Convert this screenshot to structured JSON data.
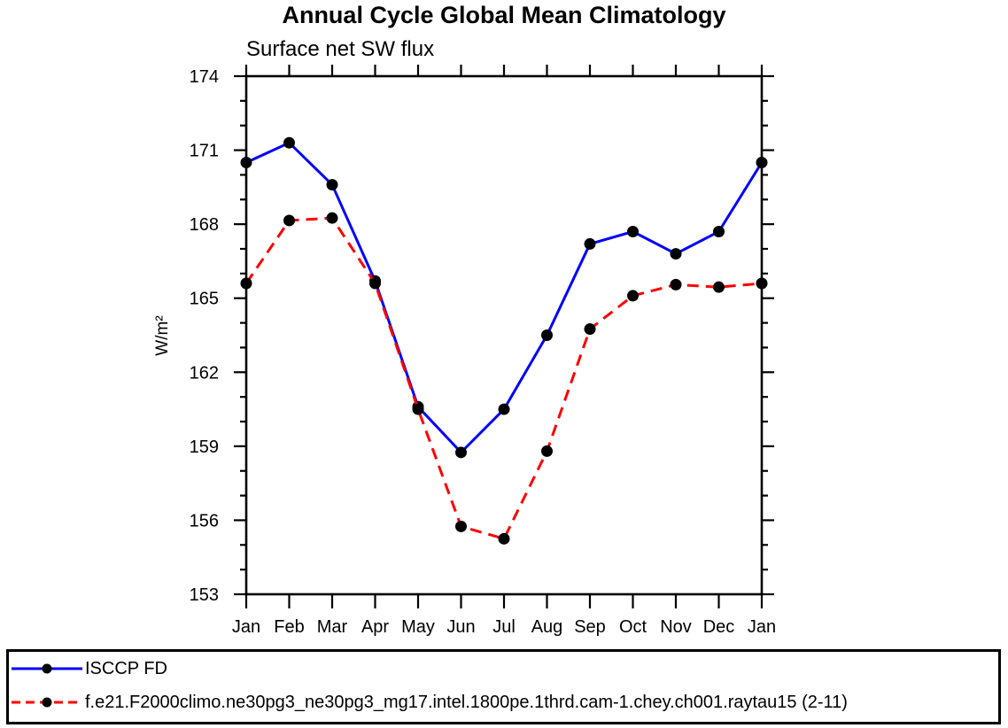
{
  "title": "Annual Cycle Global Mean Climatology",
  "subtitle": "Surface net SW flux",
  "chart_data": {
    "type": "line",
    "x_categories": [
      "Jan",
      "Feb",
      "Mar",
      "Apr",
      "May",
      "Jun",
      "Jul",
      "Aug",
      "Sep",
      "Oct",
      "Nov",
      "Dec",
      "Jan"
    ],
    "xlabel": "",
    "ylabel": "W/m²",
    "ylim": [
      153,
      174
    ],
    "ytick_major_step": 3,
    "ytick_minor_step": 1,
    "grid": false,
    "legend_position": "bottom-box",
    "axis_color": "#000000",
    "series": [
      {
        "name": "ISCCP FD",
        "color": "#0000ff",
        "line_style": "solid",
        "marker": "filled-circle",
        "marker_color": "#000000",
        "values": [
          170.5,
          171.3,
          169.6,
          165.7,
          160.6,
          158.75,
          160.5,
          163.5,
          167.2,
          167.7,
          166.8,
          167.7,
          170.5
        ]
      },
      {
        "name": "f.e21.F2000climo.ne30pg3_ne30pg3_mg17.intel.1800pe.1thrd.cam-1.chey.ch001.raytau15 (2-11)",
        "color": "#ff0000",
        "line_style": "dashed",
        "marker": "filled-circle",
        "marker_color": "#000000",
        "values": [
          165.6,
          168.15,
          168.25,
          165.6,
          160.5,
          155.75,
          155.25,
          158.8,
          163.75,
          165.1,
          165.55,
          165.45,
          165.6
        ]
      }
    ]
  }
}
